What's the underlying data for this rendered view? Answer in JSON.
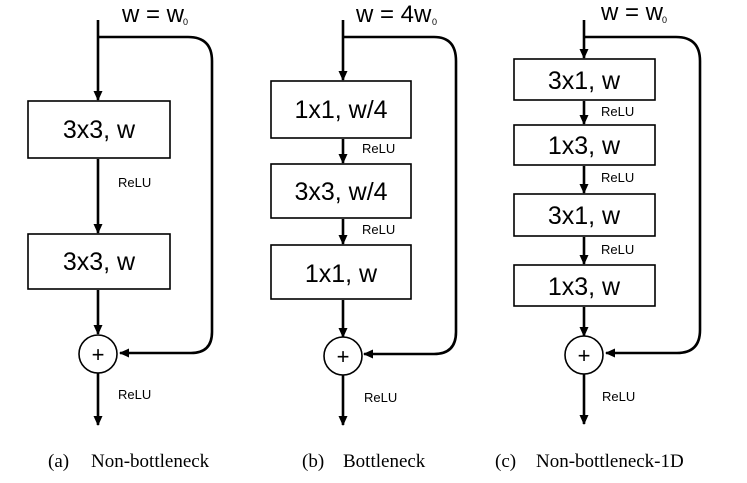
{
  "panels": [
    {
      "width_label": "w = w",
      "width_subscript": "0",
      "blocks": [
        "3x3, w",
        "3x3, w"
      ],
      "relu_labels": [
        "ReLU"
      ],
      "sum_symbol": "+",
      "output_relu": "ReLU",
      "caption_tag": "(a)",
      "caption_text": "Non-bottleneck"
    },
    {
      "width_label": "w = 4w",
      "width_subscript": "0",
      "blocks": [
        "1x1, w/4",
        "3x3, w/4",
        "1x1, w"
      ],
      "relu_labels": [
        "ReLU",
        "ReLU"
      ],
      "sum_symbol": "+",
      "output_relu": "ReLU",
      "caption_tag": "(b)",
      "caption_text": "Bottleneck"
    },
    {
      "width_label": "w = w",
      "width_subscript": "0",
      "blocks": [
        "3x1, w",
        "1x3, w",
        "3x1, w",
        "1x3, w"
      ],
      "relu_labels": [
        "ReLU",
        "ReLU",
        "ReLU"
      ],
      "sum_symbol": "+",
      "output_relu": "ReLU",
      "caption_tag": "(c)",
      "caption_text": "Non-bottleneck-1D"
    }
  ]
}
